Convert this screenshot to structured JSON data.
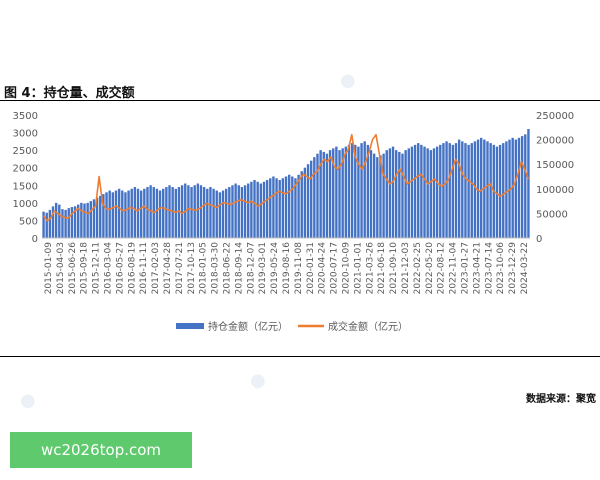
{
  "figure_title": "图 4：持仓量、成交额",
  "source": "数据来源：聚宽",
  "url_badge": "wc2026top.com",
  "colors": {
    "bars": "#4472c4",
    "line": "#ed7d31",
    "axis_text": "#595959",
    "grid": "#d9d9d9"
  },
  "chart_data": {
    "type": "bar",
    "title": "",
    "legend_position": "bottom",
    "grid": false,
    "left_axis": {
      "ylim": [
        0,
        3500
      ],
      "ticks": [
        0,
        500,
        1000,
        1500,
        2000,
        2500,
        3000,
        3500
      ]
    },
    "right_axis": {
      "ylim": [
        0,
        250000
      ],
      "ticks": [
        "0",
        "50000",
        "100000",
        "150000",
        "200000",
        "250000"
      ]
    },
    "x_tick_labels": [
      "2015-01-09",
      "2015-04-03",
      "2015-06-26",
      "2015-09-18",
      "2015-12-11",
      "2016-03-04",
      "2016-05-27",
      "2016-08-19",
      "2016-11-11",
      "2017-02-03",
      "2017-04-28",
      "2017-07-21",
      "2017-10-13",
      "2018-01-05",
      "2018-03-30",
      "2018-06-22",
      "2018-09-14",
      "2018-12-07",
      "2019-03-01",
      "2019-05-24",
      "2019-08-16",
      "2019-11-08",
      "2020-01-31",
      "2020-04-24",
      "2020-07-17",
      "2020-10-09",
      "2021-01-01",
      "2021-03-26",
      "2021-06-18",
      "2021-09-10",
      "2021-12-03",
      "2022-02-25",
      "2022-05-20",
      "2022-08-12",
      "2022-11-04",
      "2023-01-27",
      "2023-04-21",
      "2023-07-14",
      "2023-10-06",
      "2023-12-29",
      "2024-03-22"
    ],
    "series": [
      {
        "name": "持仓金额（亿元）",
        "axis": "left",
        "kind": "bar",
        "values": [
          750,
          720,
          800,
          900,
          1000,
          950,
          820,
          800,
          850,
          880,
          900,
          950,
          1000,
          980,
          1000,
          1050,
          1100,
          1150,
          1200,
          1250,
          1300,
          1350,
          1300,
          1350,
          1400,
          1350,
          1300,
          1350,
          1400,
          1450,
          1400,
          1350,
          1400,
          1450,
          1500,
          1450,
          1400,
          1350,
          1400,
          1450,
          1500,
          1450,
          1400,
          1450,
          1500,
          1550,
          1500,
          1450,
          1500,
          1550,
          1500,
          1450,
          1400,
          1450,
          1400,
          1350,
          1300,
          1350,
          1400,
          1450,
          1500,
          1550,
          1500,
          1450,
          1500,
          1550,
          1600,
          1650,
          1600,
          1550,
          1600,
          1650,
          1700,
          1750,
          1700,
          1650,
          1700,
          1750,
          1800,
          1750,
          1700,
          1800,
          1900,
          2000,
          2100,
          2200,
          2300,
          2400,
          2500,
          2450,
          2400,
          2500,
          2550,
          2600,
          2500,
          2550,
          2600,
          2650,
          2700,
          2650,
          2600,
          2700,
          2750,
          2650,
          2500,
          2400,
          2300,
          2350,
          2400,
          2500,
          2550,
          2600,
          2500,
          2450,
          2400,
          2500,
          2550,
          2600,
          2650,
          2700,
          2650,
          2600,
          2550,
          2500,
          2550,
          2600,
          2650,
          2700,
          2750,
          2700,
          2650,
          2700,
          2800,
          2750,
          2700,
          2650,
          2700,
          2750,
          2800,
          2850,
          2800,
          2750,
          2700,
          2650,
          2600,
          2650,
          2700,
          2750,
          2800,
          2850,
          2800,
          2850,
          2900,
          2950,
          3100
        ]
      },
      {
        "name": "成交金额（亿元）",
        "axis": "right",
        "kind": "line",
        "values": [
          45000,
          35000,
          40000,
          55000,
          50000,
          45000,
          42000,
          40000,
          48000,
          55000,
          60000,
          55000,
          52000,
          50000,
          58000,
          65000,
          125000,
          70000,
          60000,
          58000,
          62000,
          65000,
          60000,
          55000,
          58000,
          62000,
          60000,
          55000,
          60000,
          65000,
          58000,
          55000,
          52000,
          58000,
          62000,
          60000,
          57000,
          55000,
          52000,
          55000,
          50000,
          55000,
          60000,
          58000,
          56000,
          60000,
          65000,
          70000,
          68000,
          65000,
          62000,
          68000,
          72000,
          70000,
          68000,
          72000,
          75000,
          78000,
          75000,
          72000,
          75000,
          70000,
          65000,
          70000,
          75000,
          80000,
          85000,
          90000,
          95000,
          92000,
          90000,
          95000,
          100000,
          110000,
          120000,
          130000,
          125000,
          120000,
          130000,
          135000,
          150000,
          160000,
          155000,
          165000,
          145000,
          140000,
          150000,
          170000,
          180000,
          210000,
          165000,
          150000,
          140000,
          155000,
          175000,
          200000,
          210000,
          170000,
          130000,
          120000,
          110000,
          115000,
          130000,
          140000,
          125000,
          110000,
          115000,
          120000,
          125000,
          130000,
          120000,
          110000,
          115000,
          120000,
          110000,
          105000,
          110000,
          120000,
          140000,
          160000,
          150000,
          130000,
          120000,
          115000,
          110000,
          100000,
          95000,
          100000,
          105000,
          110000,
          95000,
          90000,
          85000,
          90000,
          95000,
          100000,
          110000,
          130000,
          155000,
          140000,
          120000
        ]
      }
    ]
  }
}
